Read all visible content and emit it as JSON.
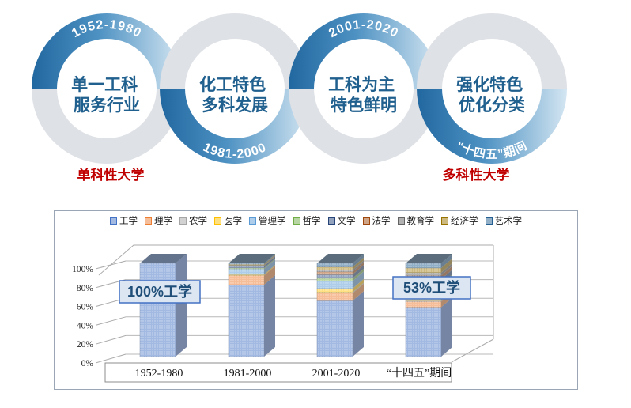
{
  "timeline": {
    "stages": [
      {
        "period": "1952-1980",
        "line1": "单一工科",
        "line2": "服务行业"
      },
      {
        "period": "1981-2000",
        "line1": "化工特色",
        "line2": "多科发展"
      },
      {
        "period": "2001-2020",
        "line1": "工科为主",
        "line2": "特色鲜明"
      },
      {
        "period": "“十四五”期间",
        "line1": "强化特色",
        "line2": "优化分类"
      }
    ],
    "annotations": {
      "left": "单科性大学",
      "right": "多科性大学"
    },
    "colors": {
      "arc_blue_dark": "#2268A0",
      "arc_blue_mid": "#4E92C3",
      "arc_blue_light": "#D4E6F2",
      "arc_gray": "#DEE1E6",
      "center_text": "#20608F",
      "annotation_red": "#C00000"
    }
  },
  "chart_data": {
    "type": "bar",
    "variant": "3d-100%-stacked-column",
    "title": "",
    "categories": [
      "1952-1980",
      "1981-2000",
      "2001-2020",
      "“十四五”期间"
    ],
    "series": [
      {
        "name": "工学",
        "color": "#4472C4",
        "values": [
          100,
          77,
          60,
          53
        ]
      },
      {
        "name": "理学",
        "color": "#ED7D31",
        "values": [
          0,
          10,
          8,
          6
        ]
      },
      {
        "name": "农学",
        "color": "#A5A5A5",
        "values": [
          0,
          0,
          1,
          1
        ]
      },
      {
        "name": "医学",
        "color": "#FFC000",
        "values": [
          0,
          1,
          4,
          5
        ]
      },
      {
        "name": "管理学",
        "color": "#5B9BD5",
        "values": [
          0,
          6,
          8,
          10
        ]
      },
      {
        "name": "哲学",
        "color": "#70AD47",
        "values": [
          0,
          1,
          3,
          3
        ]
      },
      {
        "name": "文学",
        "color": "#264478",
        "values": [
          0,
          2,
          4,
          5
        ]
      },
      {
        "name": "法学",
        "color": "#9E480E",
        "values": [
          0,
          0,
          3,
          4
        ]
      },
      {
        "name": "教育学",
        "color": "#636363",
        "values": [
          0,
          1,
          2,
          3
        ]
      },
      {
        "name": "经济学",
        "color": "#997300",
        "values": [
          0,
          1,
          3,
          5
        ]
      },
      {
        "name": "艺术学",
        "color": "#255E91",
        "values": [
          0,
          1,
          4,
          5
        ]
      }
    ],
    "y_ticks": [
      "0%",
      "20%",
      "40%",
      "60%",
      "80%",
      "100%"
    ],
    "ylim": [
      0,
      100
    ],
    "grid": true,
    "legend_position": "top",
    "annotations": [
      {
        "text": "100%工学",
        "target": "1952-1980"
      },
      {
        "text": "53%工学",
        "target": "“十四五”期间"
      }
    ]
  }
}
